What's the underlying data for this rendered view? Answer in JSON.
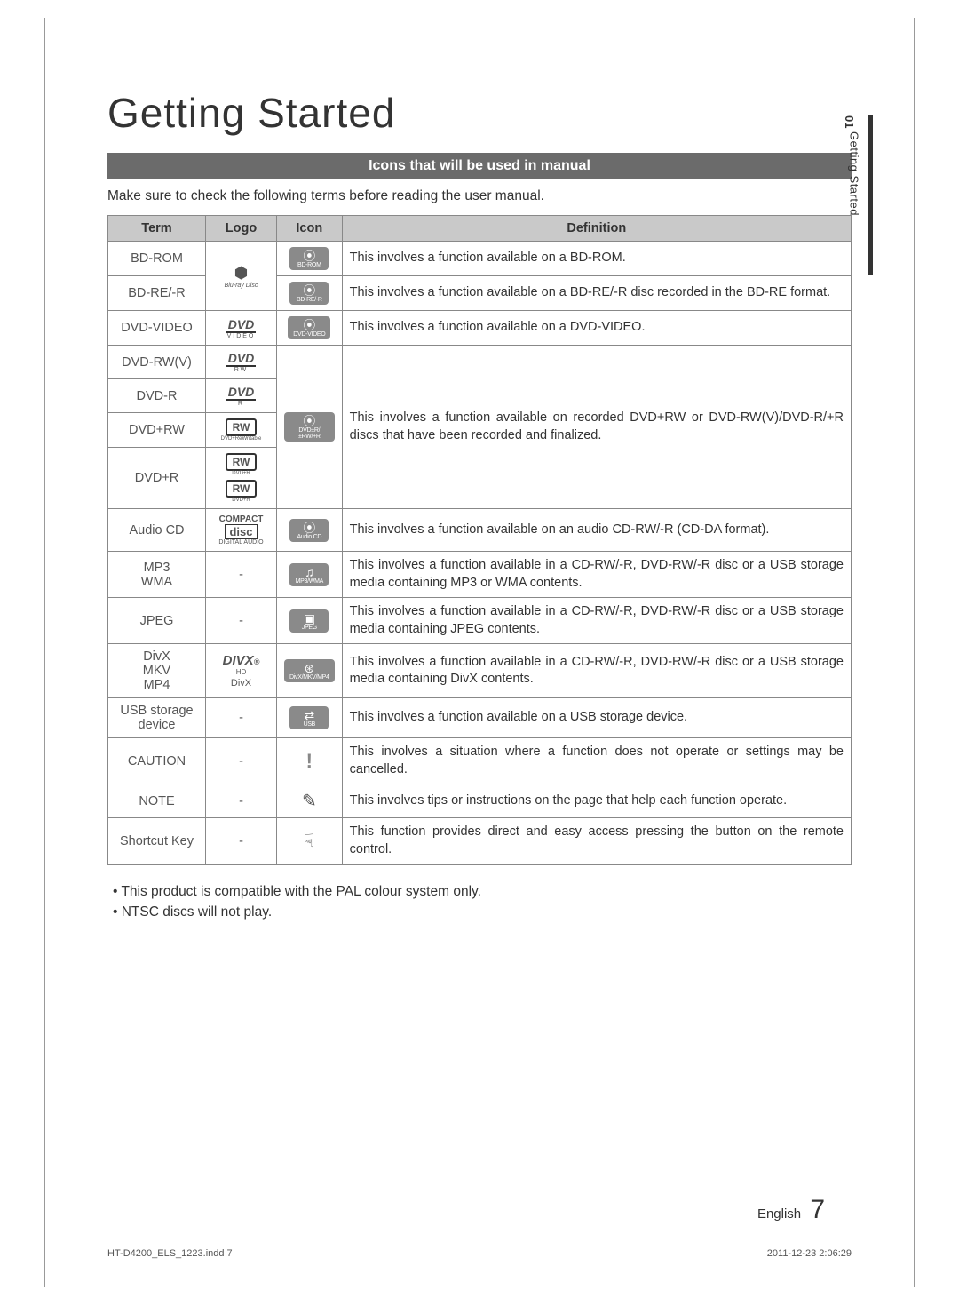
{
  "title": "Getting Started",
  "section_bar": "Icons that will be used in manual",
  "intro": "Make sure to check the following terms before reading the user manual.",
  "side_tab": {
    "num": "01",
    "label": "Getting Started"
  },
  "headers": {
    "term": "Term",
    "logo": "Logo",
    "icon": "Icon",
    "definition": "Definition"
  },
  "rows": [
    {
      "term": "BD-ROM",
      "logo_type": "bluray",
      "logo_text": "",
      "icon_sym": "⦿",
      "icon_label": "BD-ROM",
      "logo_rowspan": 2,
      "definition": "This involves a function available on a BD-ROM."
    },
    {
      "term": "BD-RE/-R",
      "icon_sym": "⦿",
      "icon_label": "BD-RE/-R",
      "definition": "This involves a function available on a BD-RE/-R disc recorded in the BD-RE format."
    },
    {
      "term": "DVD-VIDEO",
      "logo_type": "dvd",
      "logo_text": "DVD",
      "logo_sub": "VIDEO",
      "icon_sym": "⦿",
      "icon_label": "DVD-VIDEO",
      "definition": "This involves a function available on a DVD-VIDEO."
    },
    {
      "term": "DVD-RW(V)",
      "logo_type": "dvd",
      "logo_text": "DVD",
      "logo_sub": "RW",
      "icon_rowspan": 4,
      "def_rowspan": 4,
      "icon_sym": "⦿",
      "icon_label": "DVD±R/±RW/+R",
      "definition": "This involves a function available on recorded DVD+RW or DVD-RW(V)/DVD-R/+R discs that have been recorded and finalized."
    },
    {
      "term": "DVD-R",
      "logo_type": "dvd",
      "logo_text": "DVD",
      "logo_sub": "R"
    },
    {
      "term": "DVD+RW",
      "logo_type": "rw",
      "logo_text": "RW",
      "logo_sub": "DVD+ReWritable"
    },
    {
      "term": "DVD+R",
      "logo_type": "rw2",
      "logo_text": "RW",
      "logo_sub": "DVD+R"
    },
    {
      "term": "Audio CD",
      "logo_type": "cd",
      "logo_text": "disc",
      "icon_sym": "⦿",
      "icon_label": "Audio CD",
      "definition": "This involves a function available on an audio CD-RW/-R (CD-DA format)."
    },
    {
      "term": "MP3\nWMA",
      "logo_text": "-",
      "icon_sym": "♫",
      "icon_label": "MP3/WMA",
      "definition": "This involves a function available in a CD-RW/-R, DVD-RW/-R disc or a USB storage media containing MP3 or WMA contents."
    },
    {
      "term": "JPEG",
      "logo_text": "-",
      "icon_sym": "▣",
      "icon_label": "JPEG",
      "definition": "This involves a function available in a CD-RW/-R, DVD-RW/-R disc or a USB storage media containing JPEG contents."
    },
    {
      "term": "DivX\nMKV\nMP4",
      "logo_type": "divx",
      "logo_text": "DIVX.",
      "logo_sub": "HD  DivX",
      "icon_sym": "⊛",
      "icon_label": "DivX/MKV/MP4",
      "definition": "This involves a function available in a CD-RW/-R, DVD-RW/-R disc or a USB storage media containing DivX contents."
    },
    {
      "term": "USB storage\ndevice",
      "logo_text": "-",
      "icon_sym": "⇄",
      "icon_label": "USB",
      "definition": "This involves a function available on a USB storage device."
    },
    {
      "term": "CAUTION",
      "logo_text": "-",
      "icon_type": "caution",
      "icon_sym": "!",
      "definition": "This involves a situation where a function does not operate or settings may be cancelled."
    },
    {
      "term": "NOTE",
      "logo_text": "-",
      "icon_type": "note",
      "icon_sym": "✎",
      "definition": "This involves tips or instructions on the page that help each function operate."
    },
    {
      "term": "Shortcut Key",
      "logo_text": "-",
      "icon_type": "shortcut",
      "icon_sym": "☟",
      "definition": "This function provides direct and easy access pressing the button on the remote control."
    }
  ],
  "bullets": [
    "This product is compatible with the PAL colour system only.",
    "NTSC discs will not play."
  ],
  "footer": {
    "lang": "English",
    "page": "7",
    "left": "HT-D4200_ELS_1223.indd   7",
    "right": "2011-12-23    2:06:29"
  }
}
